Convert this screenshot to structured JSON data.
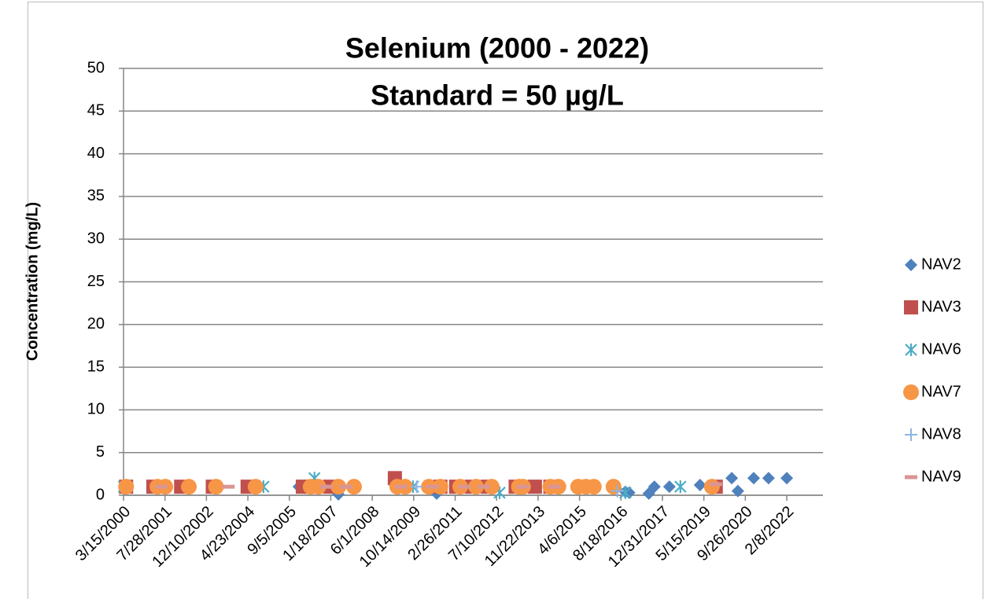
{
  "chart_data": {
    "type": "scatter",
    "title": [
      "Selenium (2000 - 2022)",
      "Standard = 50 µg/L"
    ],
    "y_label": "Concentration (mg/L)",
    "ylim": [
      0,
      50
    ],
    "yticks": [
      0,
      5,
      10,
      15,
      20,
      25,
      30,
      35,
      40,
      45,
      50
    ],
    "grid": true,
    "xlim": [
      "3/15/2000",
      "4/20/2023"
    ],
    "xticks": [
      "3/15/2000",
      "7/28/2001",
      "12/10/2002",
      "4/23/2004",
      "9/5/2005",
      "1/18/2007",
      "6/1/2008",
      "10/14/2009",
      "2/26/2011",
      "7/10/2012",
      "11/22/2013",
      "4/6/2015",
      "8/18/2016",
      "12/31/2017",
      "5/15/2019",
      "9/26/2020",
      "2/8/2022"
    ],
    "legend": "right",
    "series": [
      {
        "name": "NAV2",
        "color": "#4f81bd",
        "marker": "diamond",
        "x": [
          "4/15/2000",
          "12/29/2005",
          "4/20/2007",
          "7/18/2010",
          "10/10/2016",
          "11/25/2016",
          "7/20/2017",
          "9/25/2017",
          "3/25/2018",
          "3/30/2019",
          "4/15/2020",
          "6/28/2020",
          "1/5/2021",
          "7/3/2021",
          "2/8/2022"
        ],
        "values": [
          1,
          1,
          0.1,
          0.2,
          0.4,
          0.3,
          0.2,
          1,
          1,
          1.2,
          2,
          0.5,
          2,
          2,
          2
        ]
      },
      {
        "name": "NAV3",
        "color": "#c0504d",
        "marker": "square",
        "x": [
          "4/15/2000",
          "3/10/2001",
          "2/8/2002",
          "2/25/2003",
          "4/20/2004",
          "2/15/2006",
          "5/20/2006",
          "1/12/2007",
          "3/1/2009",
          "9/1/2010",
          "3/10/2011",
          "9/15/2011",
          "3/25/2012",
          "2/25/2013",
          "10/15/2013",
          "4/20/2014",
          "10/5/2019"
        ],
        "values": [
          1,
          1,
          1,
          1,
          1,
          1,
          1,
          1,
          2,
          1,
          1,
          1,
          1,
          1,
          1,
          1,
          1
        ]
      },
      {
        "name": "NAV6",
        "color": "#4bacc6",
        "marker": "asterisk",
        "x": [
          "3/20/2000",
          "7/25/2004",
          "10/28/2004",
          "7/5/2006",
          "10/5/2009",
          "8/15/2012",
          "10/10/2016",
          "8/5/2018"
        ],
        "values": [
          1,
          1,
          1,
          2,
          1,
          0.3,
          0.3,
          1
        ]
      },
      {
        "name": "NAV7",
        "color": "#f79646",
        "marker": "circle",
        "x": [
          "4/15/2000",
          "4/28/2001",
          "8/1/2001",
          "5/12/2002",
          "4/5/2003",
          "7/25/2004",
          "5/20/2006",
          "8/22/2006",
          "4/20/2007",
          "10/25/2007",
          "3/30/2009",
          "7/3/2009",
          "4/15/2010",
          "9/1/2010",
          "4/28/2011",
          "11/5/2011",
          "5/12/2012",
          "4/5/2013",
          "5/25/2013",
          "4/20/2014",
          "7/25/2014",
          "3/20/2015",
          "6/22/2015",
          "9/25/2015",
          "5/20/2016",
          "8/20/2019"
        ],
        "values": [
          1,
          1,
          1,
          1,
          1,
          1,
          1,
          1,
          1,
          1,
          1,
          1,
          1,
          1,
          1,
          1,
          1,
          1,
          1,
          1,
          1,
          1,
          1,
          1,
          1,
          1
        ]
      },
      {
        "name": "NAV8",
        "color": "#8eb4e3",
        "marker": "plus",
        "x": [
          "11/20/2009",
          "7/5/2016"
        ],
        "values": [
          1,
          0.5
        ]
      },
      {
        "name": "NAV9",
        "color": "#d99694",
        "marker": "dash",
        "x": [
          "6/15/2001",
          "9/1/2003",
          "11/25/2006",
          "7/20/2007",
          "5/15/2009",
          "5/30/2010",
          "6/15/2011",
          "2/8/2012",
          "5/25/2013",
          "6/7/2014",
          "10/5/2019"
        ],
        "values": [
          1,
          1,
          1,
          1,
          1,
          1,
          1,
          1,
          1,
          1,
          1.3
        ]
      }
    ]
  }
}
